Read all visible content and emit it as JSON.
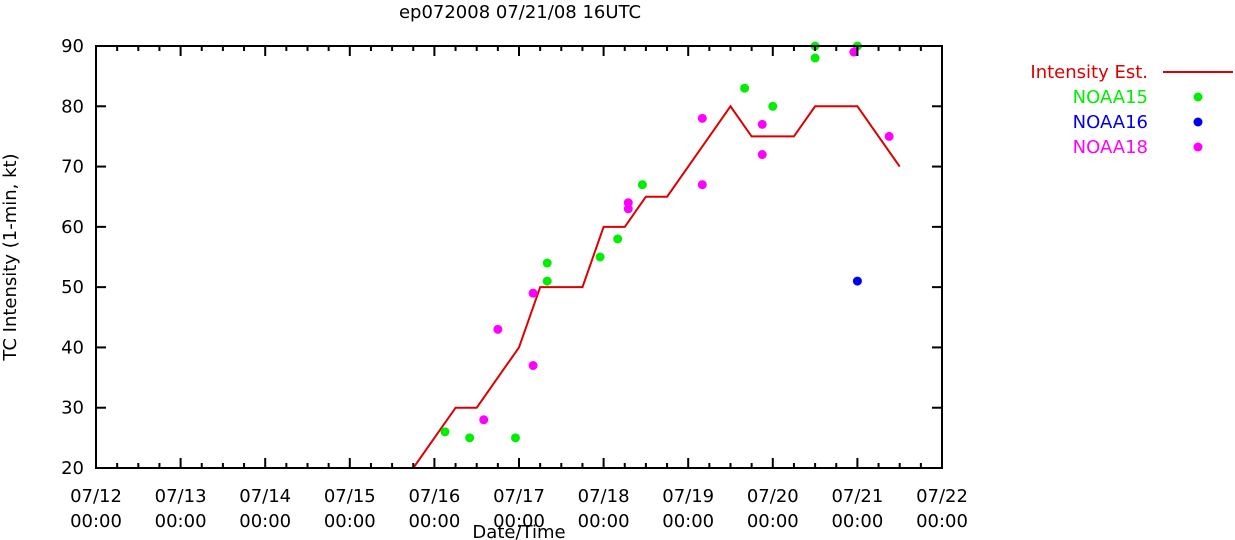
{
  "chart_data": {
    "type": "scatter",
    "title": "ep072008 07/21/08 16UTC",
    "xlabel": "Date/Time",
    "ylabel": "TC Intensity (1-min, kt)",
    "xlim": [
      "07/12 00:00",
      "07/22 00:00"
    ],
    "ylim": [
      20,
      90
    ],
    "x_tick_labels": [
      [
        "07/12",
        "00:00"
      ],
      [
        "07/13",
        "00:00"
      ],
      [
        "07/14",
        "00:00"
      ],
      [
        "07/15",
        "00:00"
      ],
      [
        "07/16",
        "00:00"
      ],
      [
        "07/17",
        "00:00"
      ],
      [
        "07/18",
        "00:00"
      ],
      [
        "07/19",
        "00:00"
      ],
      [
        "07/20",
        "00:00"
      ],
      [
        "07/21",
        "00:00"
      ],
      [
        "07/22",
        "00:00"
      ]
    ],
    "y_ticks": [
      20,
      30,
      40,
      50,
      60,
      70,
      80,
      90
    ],
    "grid": false,
    "legend_position": "right",
    "series": [
      {
        "name": "Intensity Est.",
        "kind": "line",
        "color": "#dd0000",
        "points": [
          [
            "07/12 12:00",
            20
          ],
          [
            "07/15 18:00",
            20
          ],
          [
            "07/16 06:00",
            30
          ],
          [
            "07/16 12:00",
            30
          ],
          [
            "07/17 00:00",
            40
          ],
          [
            "07/17 06:00",
            50
          ],
          [
            "07/17 18:00",
            50
          ],
          [
            "07/18 00:00",
            60
          ],
          [
            "07/18 06:00",
            60
          ],
          [
            "07/18 12:00",
            65
          ],
          [
            "07/18 18:00",
            65
          ],
          [
            "07/19 12:00",
            80
          ],
          [
            "07/19 18:00",
            75
          ],
          [
            "07/20 06:00",
            75
          ],
          [
            "07/20 12:00",
            80
          ],
          [
            "07/21 00:00",
            80
          ],
          [
            "07/21 12:00",
            70
          ]
        ]
      },
      {
        "name": "NOAA15",
        "kind": "points",
        "color": "#00ee00",
        "points": [
          [
            "07/16 03:00",
            26
          ],
          [
            "07/16 10:00",
            25
          ],
          [
            "07/16 23:00",
            25
          ],
          [
            "07/17 08:00",
            54
          ],
          [
            "07/17 08:00",
            51
          ],
          [
            "07/17 23:00",
            55
          ],
          [
            "07/18 04:00",
            58
          ],
          [
            "07/18 11:00",
            67
          ],
          [
            "07/19 16:00",
            83
          ],
          [
            "07/20 00:00",
            80
          ],
          [
            "07/20 12:00",
            90
          ],
          [
            "07/20 12:00",
            88
          ],
          [
            "07/21 00:00",
            90
          ]
        ]
      },
      {
        "name": "NOAA16",
        "kind": "points",
        "color": "#0000ee",
        "points": [
          [
            "07/21 00:00",
            51
          ]
        ]
      },
      {
        "name": "NOAA18",
        "kind": "points",
        "color": "#ff00ff",
        "points": [
          [
            "07/16 14:00",
            28
          ],
          [
            "07/16 18:00",
            43
          ],
          [
            "07/17 04:00",
            49
          ],
          [
            "07/17 04:00",
            37
          ],
          [
            "07/18 07:00",
            64
          ],
          [
            "07/18 07:00",
            63
          ],
          [
            "07/19 04:00",
            78
          ],
          [
            "07/19 04:00",
            67
          ],
          [
            "07/19 21:00",
            77
          ],
          [
            "07/19 21:00",
            72
          ],
          [
            "07/20 23:00",
            89
          ],
          [
            "07/21 09:00",
            75
          ]
        ]
      }
    ]
  }
}
